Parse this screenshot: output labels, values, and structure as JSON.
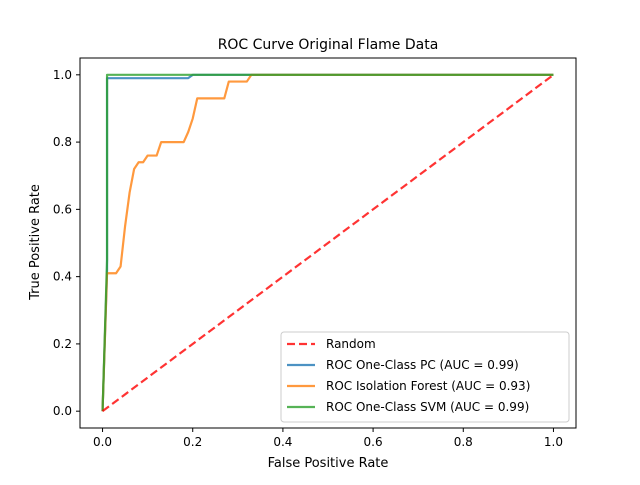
{
  "chart_data": {
    "type": "line",
    "title": "ROC Curve Original Flame Data",
    "xlabel": "False Positive Rate",
    "ylabel": "True Positive Rate",
    "xlim": [
      -0.05,
      1.05
    ],
    "ylim": [
      -0.05,
      1.05
    ],
    "xticks": [
      0.0,
      0.2,
      0.4,
      0.6,
      0.8,
      1.0
    ],
    "xtick_labels": [
      "0.0",
      "0.2",
      "0.4",
      "0.6",
      "0.8",
      "1.0"
    ],
    "yticks": [
      0.0,
      0.2,
      0.4,
      0.6,
      0.8,
      1.0
    ],
    "ytick_labels": [
      "0.0",
      "0.2",
      "0.4",
      "0.6",
      "0.8",
      "1.0"
    ],
    "grid": false,
    "legend_position": "lower-right",
    "series": [
      {
        "name": "Random",
        "color": "#ff0000",
        "style": "dashed",
        "x": [
          0.0,
          1.0
        ],
        "y": [
          0.0,
          1.0
        ]
      },
      {
        "name": "ROC One-Class PC (AUC = 0.99)",
        "color": "#1f77b4",
        "style": "solid",
        "x": [
          0.0,
          0.01,
          0.01,
          0.19,
          0.2,
          1.0
        ],
        "y": [
          0.0,
          0.42,
          0.99,
          0.99,
          1.0,
          1.0
        ]
      },
      {
        "name": "ROC Isolation Forest (AUC = 0.93)",
        "color": "#ff7f0e",
        "style": "solid",
        "x": [
          0.0,
          0.01,
          0.03,
          0.04,
          0.05,
          0.06,
          0.07,
          0.08,
          0.09,
          0.1,
          0.12,
          0.13,
          0.18,
          0.19,
          0.2,
          0.21,
          0.27,
          0.28,
          0.32,
          0.33,
          1.0
        ],
        "y": [
          0.0,
          0.41,
          0.41,
          0.43,
          0.55,
          0.65,
          0.72,
          0.74,
          0.74,
          0.76,
          0.76,
          0.8,
          0.8,
          0.83,
          0.87,
          0.93,
          0.93,
          0.98,
          0.98,
          1.0,
          1.0
        ]
      },
      {
        "name": "ROC One-Class SVM (AUC = 0.99)",
        "color": "#2ca02c",
        "style": "solid",
        "x": [
          0.0,
          0.01,
          0.01,
          1.0
        ],
        "y": [
          0.0,
          0.45,
          1.0,
          1.0
        ]
      }
    ]
  }
}
